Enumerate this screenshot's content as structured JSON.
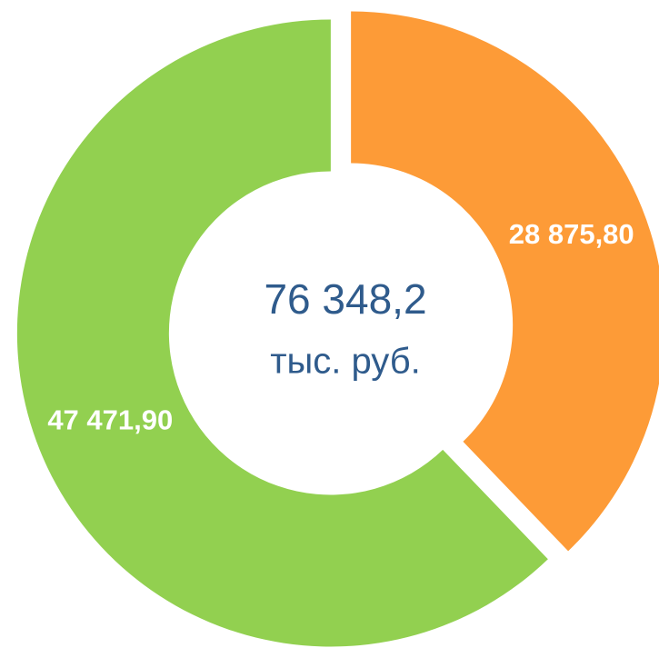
{
  "chart_data": {
    "type": "donut",
    "values": [
      28875.8,
      47471.9
    ],
    "value_labels": [
      "28 875,80",
      "47 471,90"
    ],
    "colors": [
      "#fd9b37",
      "#92d050"
    ],
    "center_text": [
      "76 348,2",
      "тыс. руб."
    ]
  }
}
